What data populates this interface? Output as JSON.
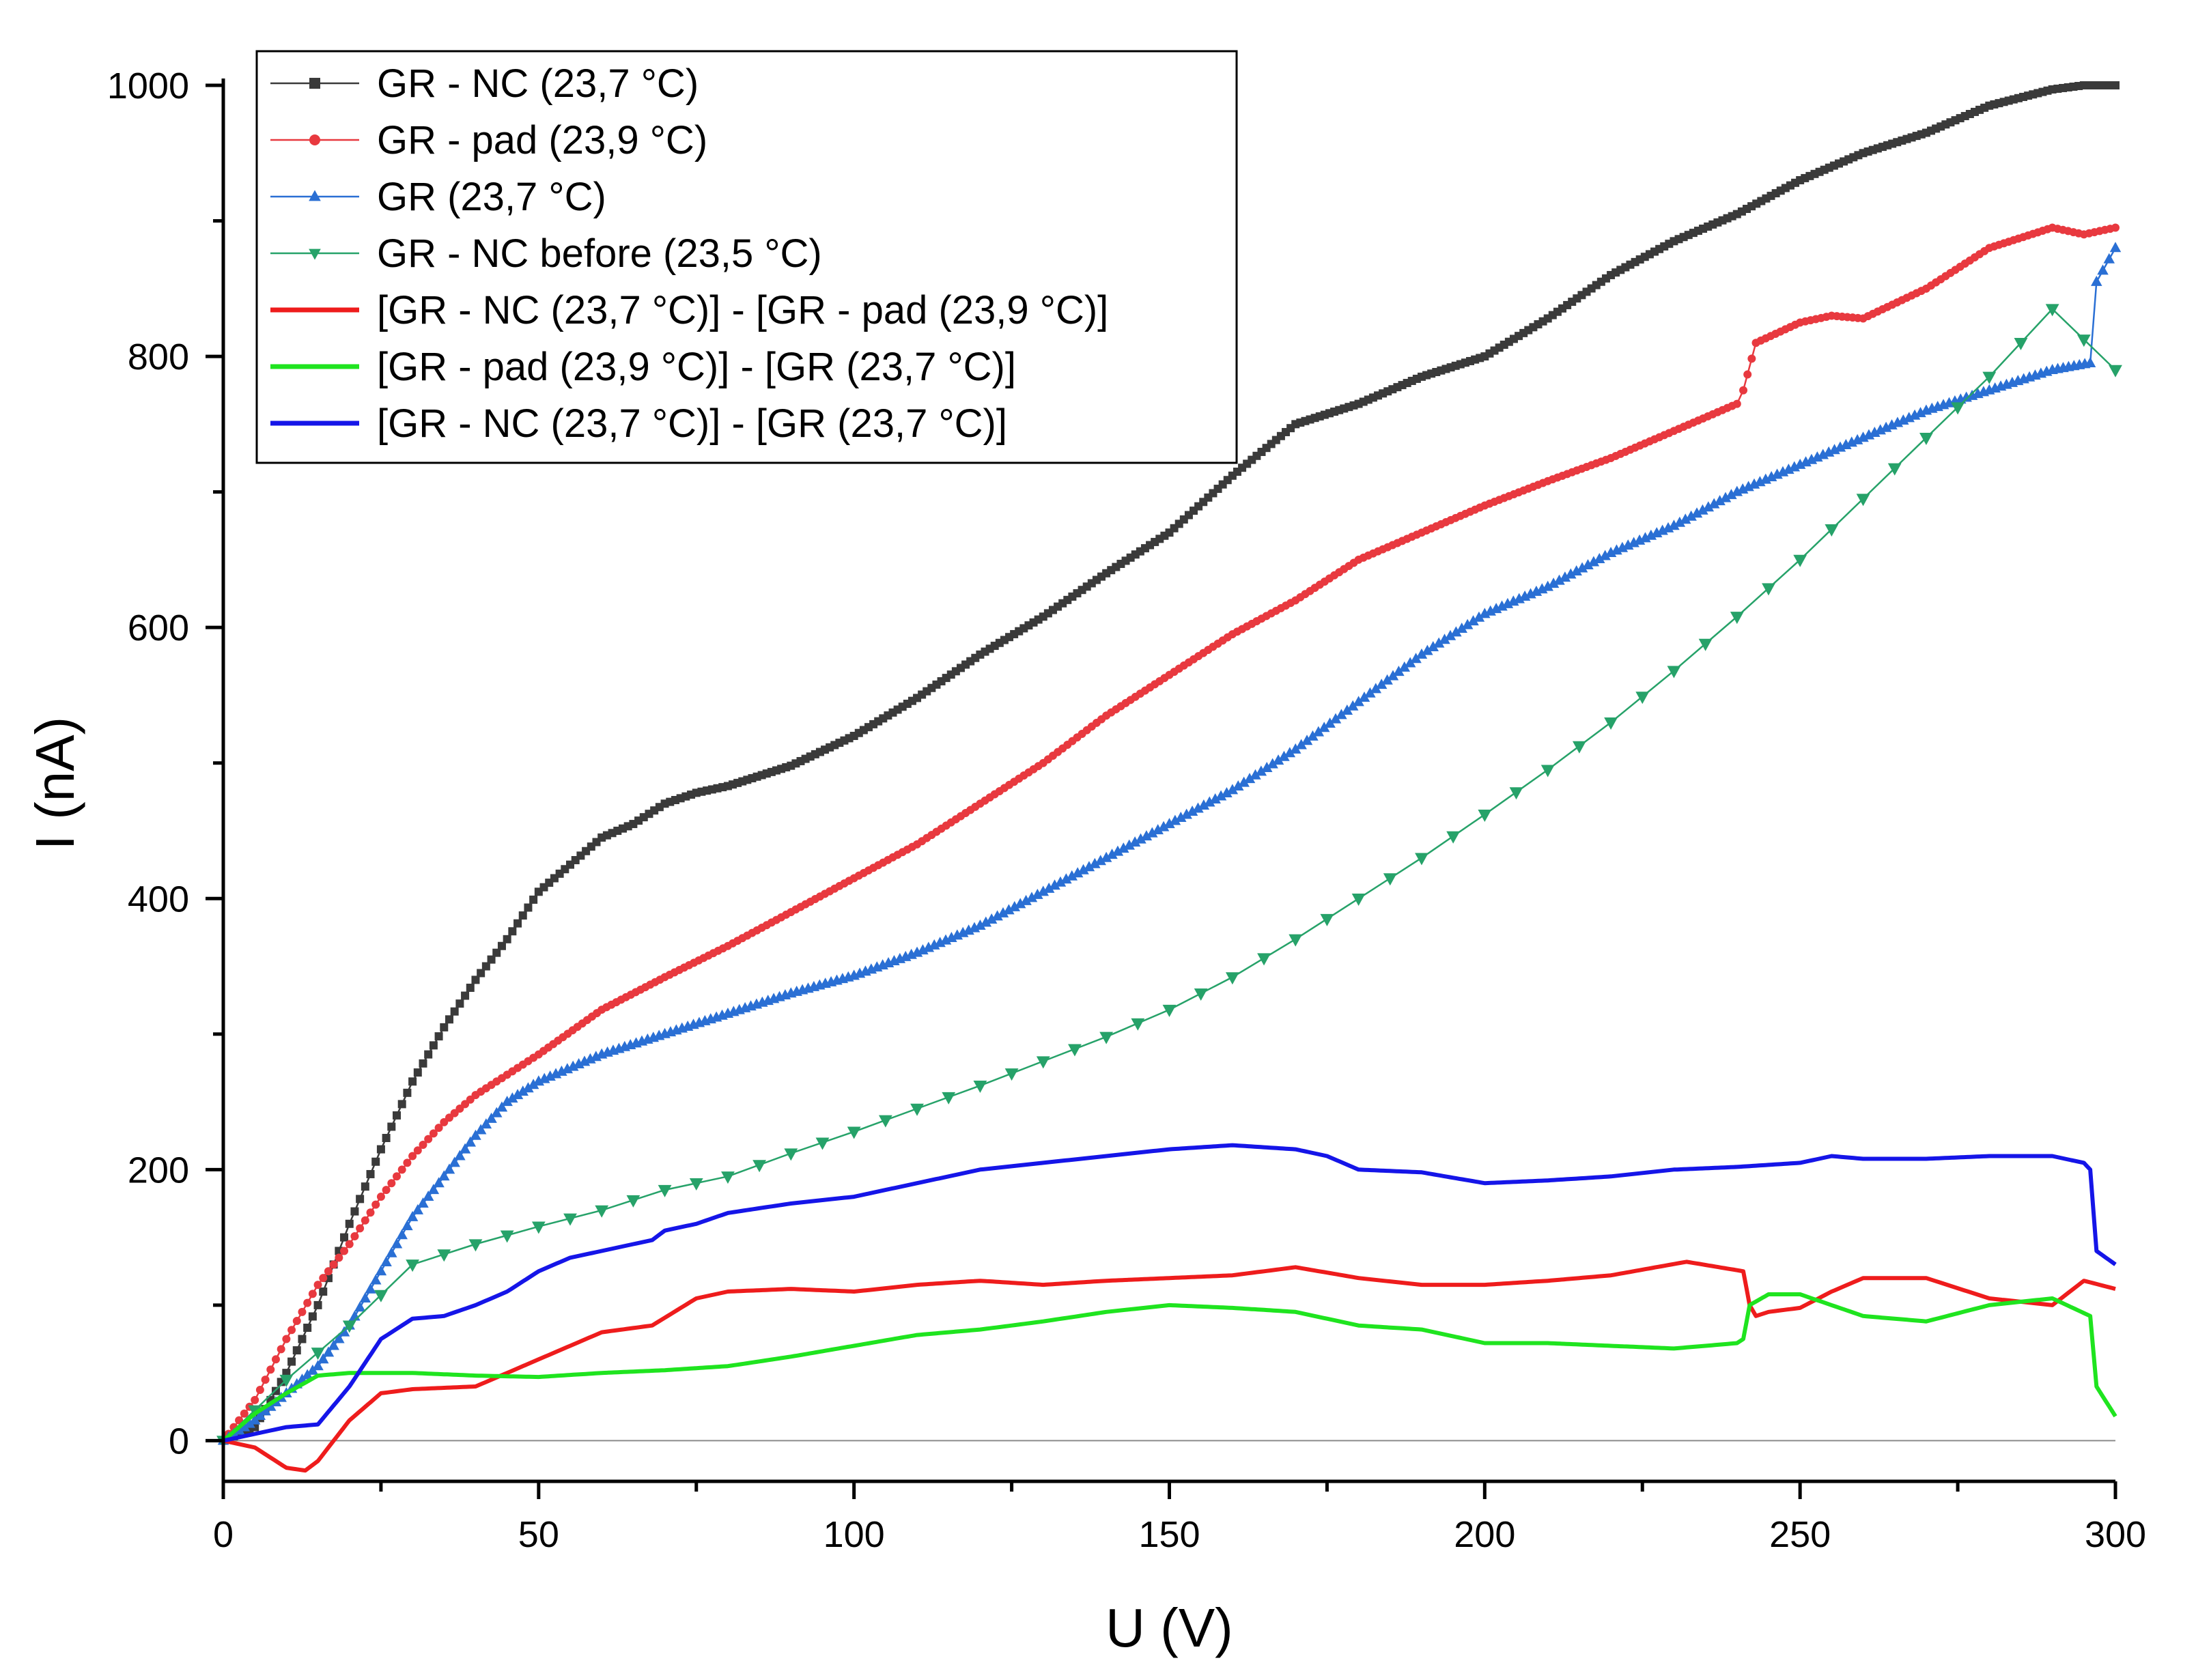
{
  "chart_data": {
    "type": "line",
    "xlabel": "U (V)",
    "ylabel": "I (nA)",
    "xlim": [
      0,
      300
    ],
    "ylim": [
      -30,
      1000
    ],
    "xticks": [
      0,
      50,
      100,
      150,
      200,
      250,
      300
    ],
    "yticks": [
      0,
      200,
      400,
      600,
      800,
      1000
    ],
    "xtick_labels": [
      "0",
      "50",
      "100",
      "150",
      "200",
      "250",
      "300"
    ],
    "ytick_labels": [
      "0",
      "200",
      "400",
      "600",
      "800",
      "1000"
    ],
    "grid": false,
    "zero_line": true,
    "legend_position": "top-left",
    "series": [
      {
        "name": "GR - NC (23,7 °C)",
        "color": "#3a3a3a",
        "marker": "square",
        "x": [
          0,
          5,
          10,
          15,
          20,
          25,
          30,
          35,
          40,
          45,
          50,
          55,
          60,
          65,
          70,
          75,
          80,
          90,
          100,
          110,
          120,
          130,
          140,
          150,
          160,
          170,
          180,
          190,
          200,
          210,
          220,
          230,
          240,
          250,
          260,
          270,
          280,
          290,
          295,
          300
        ],
        "y": [
          0,
          10,
          50,
          100,
          160,
          215,
          265,
          305,
          340,
          370,
          405,
          425,
          445,
          455,
          470,
          478,
          483,
          498,
          520,
          548,
          580,
          608,
          640,
          670,
          712,
          750,
          765,
          785,
          800,
          828,
          860,
          885,
          905,
          930,
          950,
          965,
          985,
          997,
          1000,
          1000
        ]
      },
      {
        "name": "GR - pad (23,9 °C)",
        "color": "#e8393f",
        "marker": "circle",
        "x": [
          0,
          5,
          10,
          15,
          20,
          25,
          30,
          35,
          40,
          45,
          50,
          60,
          70,
          80,
          90,
          100,
          110,
          120,
          130,
          140,
          150,
          160,
          170,
          180,
          190,
          200,
          210,
          220,
          230,
          240,
          241,
          243,
          250,
          255,
          260,
          270,
          280,
          290,
          295,
          300
        ],
        "y": [
          0,
          30,
          75,
          115,
          145,
          180,
          210,
          235,
          255,
          270,
          285,
          318,
          342,
          365,
          390,
          415,
          440,
          470,
          500,
          535,
          565,
          595,
          620,
          650,
          670,
          690,
          708,
          725,
          745,
          765,
          775,
          810,
          825,
          830,
          828,
          850,
          880,
          895,
          890,
          895
        ]
      },
      {
        "name": "GR (23,7 °C)",
        "color": "#2a6fd4",
        "marker": "triangle-up",
        "x": [
          0,
          5,
          10,
          15,
          20,
          25,
          30,
          35,
          40,
          45,
          50,
          60,
          70,
          80,
          90,
          100,
          110,
          120,
          130,
          140,
          150,
          160,
          170,
          180,
          190,
          200,
          210,
          220,
          230,
          240,
          250,
          260,
          270,
          280,
          290,
          296,
          297,
          300
        ],
        "y": [
          0,
          15,
          35,
          55,
          85,
          125,
          165,
          195,
          225,
          250,
          265,
          285,
          300,
          315,
          330,
          343,
          360,
          380,
          405,
          430,
          455,
          480,
          510,
          545,
          580,
          610,
          630,
          655,
          675,
          700,
          720,
          740,
          760,
          775,
          790,
          795,
          855,
          880
        ]
      },
      {
        "name": "GR - NC before (23,5 °C)",
        "color": "#26a269",
        "marker": "triangle-down",
        "x": [
          0,
          10,
          20,
          30,
          40,
          50,
          60,
          70,
          80,
          90,
          100,
          110,
          120,
          130,
          140,
          150,
          160,
          170,
          180,
          190,
          200,
          210,
          220,
          230,
          240,
          250,
          260,
          270,
          280,
          290,
          300
        ],
        "y": [
          0,
          45,
          85,
          130,
          145,
          158,
          170,
          185,
          195,
          212,
          228,
          245,
          262,
          280,
          298,
          318,
          342,
          370,
          400,
          430,
          462,
          495,
          530,
          568,
          608,
          650,
          695,
          740,
          785,
          835,
          790
        ]
      },
      {
        "name": "[GR - NC (23,7 °C)] - [GR - pad (23,9 °C)]",
        "color": "#ee1c1c",
        "marker": "none",
        "x": [
          0,
          5,
          10,
          13,
          15,
          20,
          25,
          30,
          40,
          50,
          60,
          68,
          75,
          80,
          90,
          100,
          110,
          120,
          130,
          140,
          150,
          160,
          170,
          180,
          190,
          200,
          210,
          220,
          232,
          241,
          242,
          243,
          245,
          250,
          255,
          260,
          270,
          280,
          290,
          295,
          300
        ],
        "y": [
          0,
          -5,
          -20,
          -22,
          -15,
          15,
          35,
          38,
          40,
          60,
          80,
          85,
          105,
          110,
          112,
          110,
          115,
          118,
          115,
          118,
          120,
          122,
          128,
          120,
          115,
          115,
          118,
          122,
          132,
          125,
          100,
          92,
          95,
          98,
          110,
          120,
          120,
          105,
          100,
          118,
          112
        ]
      },
      {
        "name": "[GR - pad (23,9 °C)] - [GR (23,7 °C)]",
        "color": "#1fe41f",
        "marker": "none",
        "x": [
          0,
          5,
          10,
          15,
          20,
          30,
          40,
          50,
          60,
          70,
          80,
          90,
          100,
          110,
          120,
          130,
          140,
          150,
          160,
          170,
          180,
          190,
          200,
          210,
          220,
          230,
          240,
          241,
          242,
          245,
          250,
          255,
          260,
          270,
          280,
          290,
          296,
          297,
          300
        ],
        "y": [
          0,
          20,
          35,
          48,
          50,
          50,
          48,
          47,
          50,
          52,
          55,
          62,
          70,
          78,
          82,
          88,
          95,
          100,
          98,
          95,
          85,
          82,
          72,
          72,
          70,
          68,
          72,
          75,
          100,
          108,
          108,
          100,
          92,
          88,
          100,
          105,
          92,
          40,
          18
        ]
      },
      {
        "name": "[GR - NC (23,7 °C)] - [GR (23,7 °C)]",
        "color": "#1515e8",
        "marker": "none",
        "x": [
          0,
          5,
          10,
          15,
          20,
          25,
          30,
          35,
          40,
          45,
          50,
          55,
          60,
          68,
          70,
          75,
          80,
          90,
          100,
          110,
          120,
          130,
          140,
          150,
          160,
          170,
          175,
          180,
          190,
          200,
          210,
          220,
          230,
          240,
          250,
          255,
          260,
          270,
          280,
          290,
          295,
          296,
          297,
          300
        ],
        "y": [
          0,
          5,
          10,
          12,
          40,
          75,
          90,
          92,
          100,
          110,
          125,
          135,
          140,
          148,
          155,
          160,
          168,
          175,
          180,
          190,
          200,
          205,
          210,
          215,
          218,
          215,
          210,
          200,
          198,
          190,
          192,
          195,
          200,
          202,
          205,
          210,
          208,
          208,
          210,
          210,
          205,
          200,
          140,
          130
        ]
      }
    ]
  }
}
